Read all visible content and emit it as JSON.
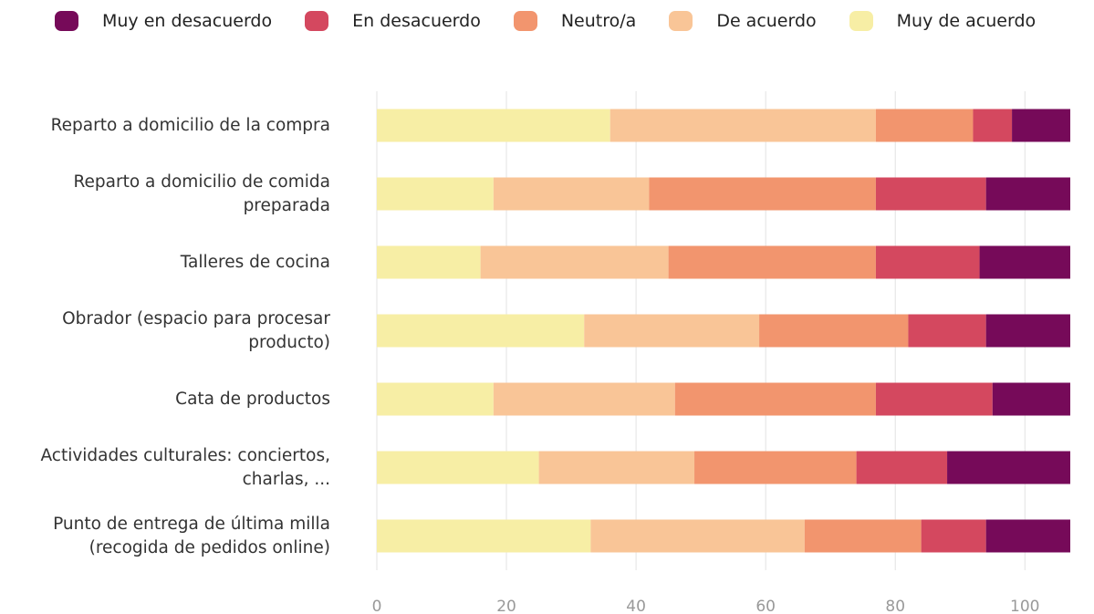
{
  "chart_data": {
    "type": "stacked-barh",
    "categories": [
      "Reparto a domicilio de la compra",
      "Reparto a domicilio de comida preparada",
      "Talleres de cocina",
      "Obrador (espacio para procesar producto)",
      "Cata de productos",
      "Actividades culturales: conciertos, charlas, ...",
      "Punto de entrega de última milla (recogida de pedidos online)"
    ],
    "series": [
      {
        "name": "Muy en desacuerdo",
        "color": "#760a59",
        "values": [
          9,
          13,
          14,
          13,
          12,
          19,
          13
        ]
      },
      {
        "name": "En desacuerdo",
        "color": "#d4485f",
        "values": [
          6,
          17,
          16,
          12,
          18,
          14,
          10
        ]
      },
      {
        "name": "Neutro/a",
        "color": "#f2956e",
        "values": [
          15,
          35,
          32,
          23,
          31,
          25,
          18
        ]
      },
      {
        "name": "De acuerdo",
        "color": "#f9c597",
        "values": [
          41,
          24,
          29,
          27,
          28,
          24,
          33
        ]
      },
      {
        "name": "Muy de acuerdo",
        "color": "#f7eea5",
        "values": [
          36,
          18,
          16,
          32,
          18,
          25,
          33
        ]
      }
    ],
    "xlim": [
      0,
      107
    ],
    "xticks": [
      0,
      20,
      40,
      60,
      80,
      100
    ],
    "grid": true
  }
}
